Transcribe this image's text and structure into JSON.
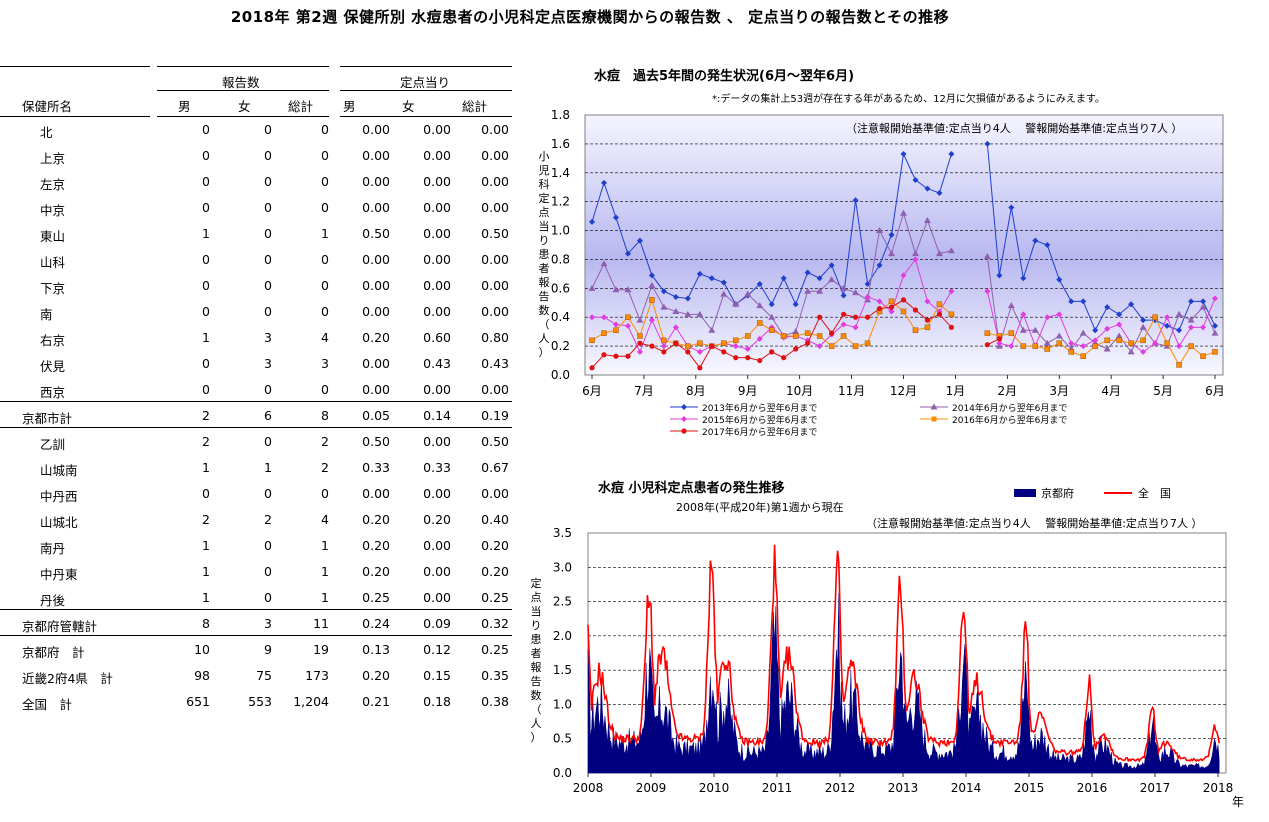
{
  "page_title": "2018年 第2週 保健所別 水痘患者の小児科定点医療機関からの報告数 、 定点当りの報告数とその推移",
  "table": {
    "group_headers": [
      "報告数",
      "定点当り"
    ],
    "col_headers": [
      "保健所名",
      "男",
      "女",
      "総計",
      "男",
      "女",
      "総計"
    ],
    "rows": [
      {
        "name": "北",
        "m": "0",
        "f": "0",
        "t": "0",
        "pm": "0.00",
        "pf": "0.00",
        "pt": "0.00",
        "indent": true
      },
      {
        "name": "上京",
        "m": "0",
        "f": "0",
        "t": "0",
        "pm": "0.00",
        "pf": "0.00",
        "pt": "0.00",
        "indent": true
      },
      {
        "name": "左京",
        "m": "0",
        "f": "0",
        "t": "0",
        "pm": "0.00",
        "pf": "0.00",
        "pt": "0.00",
        "indent": true
      },
      {
        "name": "中京",
        "m": "0",
        "f": "0",
        "t": "0",
        "pm": "0.00",
        "pf": "0.00",
        "pt": "0.00",
        "indent": true
      },
      {
        "name": "東山",
        "m": "1",
        "f": "0",
        "t": "1",
        "pm": "0.50",
        "pf": "0.00",
        "pt": "0.50",
        "indent": true
      },
      {
        "name": "山科",
        "m": "0",
        "f": "0",
        "t": "0",
        "pm": "0.00",
        "pf": "0.00",
        "pt": "0.00",
        "indent": true
      },
      {
        "name": "下京",
        "m": "0",
        "f": "0",
        "t": "0",
        "pm": "0.00",
        "pf": "0.00",
        "pt": "0.00",
        "indent": true
      },
      {
        "name": "南",
        "m": "0",
        "f": "0",
        "t": "0",
        "pm": "0.00",
        "pf": "0.00",
        "pt": "0.00",
        "indent": true
      },
      {
        "name": "右京",
        "m": "1",
        "f": "3",
        "t": "4",
        "pm": "0.20",
        "pf": "0.60",
        "pt": "0.80",
        "indent": true
      },
      {
        "name": "伏見",
        "m": "0",
        "f": "3",
        "t": "3",
        "pm": "0.00",
        "pf": "0.43",
        "pt": "0.43",
        "indent": true
      },
      {
        "name": "西京",
        "m": "0",
        "f": "0",
        "t": "0",
        "pm": "0.00",
        "pf": "0.00",
        "pt": "0.00",
        "indent": true
      },
      {
        "name": "京都市計",
        "m": "2",
        "f": "6",
        "t": "8",
        "pm": "0.05",
        "pf": "0.14",
        "pt": "0.19",
        "indent": false
      },
      {
        "name": "乙訓",
        "m": "2",
        "f": "0",
        "t": "2",
        "pm": "0.50",
        "pf": "0.00",
        "pt": "0.50",
        "indent": true
      },
      {
        "name": "山城南",
        "m": "1",
        "f": "1",
        "t": "2",
        "pm": "0.33",
        "pf": "0.33",
        "pt": "0.67",
        "indent": true
      },
      {
        "name": "中丹西",
        "m": "0",
        "f": "0",
        "t": "0",
        "pm": "0.00",
        "pf": "0.00",
        "pt": "0.00",
        "indent": true
      },
      {
        "name": "山城北",
        "m": "2",
        "f": "2",
        "t": "4",
        "pm": "0.20",
        "pf": "0.20",
        "pt": "0.40",
        "indent": true
      },
      {
        "name": "南丹",
        "m": "1",
        "f": "0",
        "t": "1",
        "pm": "0.20",
        "pf": "0.00",
        "pt": "0.20",
        "indent": true
      },
      {
        "name": "中丹東",
        "m": "1",
        "f": "0",
        "t": "1",
        "pm": "0.20",
        "pf": "0.00",
        "pt": "0.20",
        "indent": true
      },
      {
        "name": "丹後",
        "m": "1",
        "f": "0",
        "t": "1",
        "pm": "0.25",
        "pf": "0.00",
        "pt": "0.25",
        "indent": true
      },
      {
        "name": "京都府管轄計",
        "m": "8",
        "f": "3",
        "t": "11",
        "pm": "0.24",
        "pf": "0.09",
        "pt": "0.32",
        "indent": false
      },
      {
        "name": "京都府　計",
        "m": "10",
        "f": "9",
        "t": "19",
        "pm": "0.13",
        "pf": "0.12",
        "pt": "0.25",
        "indent": false
      },
      {
        "name": "近畿2府4県　計",
        "m": "98",
        "f": "75",
        "t": "173",
        "pm": "0.20",
        "pf": "0.15",
        "pt": "0.35",
        "indent": false
      },
      {
        "name": "全国　計",
        "m": "651",
        "f": "553",
        "t": "1,204",
        "pm": "0.21",
        "pf": "0.18",
        "pt": "0.38",
        "indent": false
      }
    ]
  },
  "chart_data": [
    {
      "type": "line",
      "title": "水痘　過去5年間の発生状況(6月～翌年6月)",
      "note": "*:データの集計上53週が存在する年があるため、12月に欠損値があるようにみえます。",
      "threshold_note": "（注意報開始基準値:定点当り4人　 警報開始基準値:定点当り7人 ）",
      "ylabel": "小児科定点当り患者報告数（人）",
      "ylim": [
        0,
        1.8
      ],
      "yticks": [
        "0.0",
        "0.2",
        "0.4",
        "0.6",
        "0.8",
        "1.0",
        "1.2",
        "1.4",
        "1.6",
        "1.8"
      ],
      "xticks": [
        "6月",
        "7月",
        "8月",
        "9月",
        "10月",
        "11月",
        "12月",
        "1月",
        "2月",
        "3月",
        "4月",
        "5月",
        "6月"
      ],
      "grid": true,
      "legend_position": "bottom",
      "x_weeks": 53,
      "series": [
        {
          "name": "2013年6月から翌年6月まで",
          "color": "#1f3fcf",
          "marker": "diamond",
          "values": [
            1.06,
            1.33,
            1.09,
            0.84,
            0.93,
            0.69,
            0.58,
            0.54,
            0.53,
            0.7,
            0.67,
            0.64,
            0.49,
            0.55,
            0.63,
            0.49,
            0.67,
            0.49,
            0.71,
            0.67,
            0.76,
            0.55,
            1.21,
            0.63,
            0.76,
            0.97,
            1.53,
            1.35,
            1.29,
            1.26,
            1.53,
            null,
            null,
            1.6,
            0.69,
            1.16,
            0.67,
            0.93,
            0.9,
            0.66,
            0.51,
            0.51,
            0.31,
            0.47,
            0.42,
            0.49,
            0.38,
            0.38,
            0.34,
            0.31,
            0.51,
            0.51,
            0.34
          ]
        },
        {
          "name": "2014年6月から翌年6月まで",
          "color": "#9060b0",
          "marker": "triangle",
          "values": [
            0.6,
            0.77,
            0.59,
            0.59,
            0.38,
            0.62,
            0.47,
            0.44,
            0.42,
            0.42,
            0.31,
            0.56,
            0.49,
            0.56,
            0.48,
            0.4,
            0.27,
            0.3,
            0.58,
            0.58,
            0.66,
            0.6,
            0.57,
            0.52,
            1.0,
            0.84,
            1.12,
            0.84,
            1.07,
            0.84,
            0.86,
            null,
            null,
            0.82,
            0.2,
            0.48,
            0.31,
            0.31,
            0.22,
            0.27,
            0.18,
            0.29,
            0.22,
            0.18,
            0.27,
            0.16,
            0.33,
            0.22,
            0.2,
            0.42,
            0.38,
            0.47,
            0.29
          ]
        },
        {
          "name": "2015年6月から翌年6月まで",
          "color": "#e03ce0",
          "marker": "diamond",
          "values": [
            0.4,
            0.4,
            0.35,
            0.34,
            0.16,
            0.38,
            0.2,
            0.33,
            0.2,
            0.16,
            0.2,
            0.22,
            0.2,
            0.18,
            0.25,
            0.33,
            0.26,
            0.27,
            0.24,
            0.2,
            0.28,
            0.35,
            0.33,
            0.54,
            0.51,
            0.44,
            0.69,
            0.8,
            0.51,
            0.44,
            0.58,
            null,
            null,
            0.58,
            0.22,
            0.2,
            0.42,
            0.2,
            0.4,
            0.42,
            0.22,
            0.2,
            0.24,
            0.32,
            0.35,
            0.22,
            0.16,
            0.22,
            0.4,
            0.2,
            0.33,
            0.33,
            0.53
          ]
        },
        {
          "name": "2016年6月から翌年6月まで",
          "color": "#ff8c00",
          "marker": "square",
          "values": [
            0.24,
            0.29,
            0.31,
            0.4,
            0.27,
            0.52,
            0.24,
            0.22,
            0.2,
            0.22,
            0.2,
            0.22,
            0.24,
            0.27,
            0.36,
            0.31,
            0.27,
            0.27,
            0.29,
            0.27,
            0.2,
            0.27,
            0.2,
            0.22,
            0.44,
            0.51,
            0.44,
            0.31,
            0.33,
            0.49,
            0.42,
            null,
            null,
            0.29,
            0.27,
            0.29,
            0.2,
            0.2,
            0.18,
            0.22,
            0.16,
            0.13,
            0.2,
            0.24,
            0.24,
            0.22,
            0.24,
            0.4,
            0.22,
            0.07,
            0.2,
            0.13,
            0.16
          ]
        },
        {
          "name": "2017年6月から翌年6月まで",
          "color": "#e01010",
          "marker": "circle",
          "values": [
            0.05,
            0.14,
            0.13,
            0.13,
            0.22,
            0.2,
            0.16,
            0.22,
            0.16,
            0.05,
            0.2,
            0.16,
            0.12,
            0.12,
            0.1,
            0.16,
            0.12,
            0.18,
            0.22,
            0.4,
            0.29,
            0.42,
            0.4,
            0.4,
            0.46,
            0.47,
            0.52,
            0.45,
            0.38,
            0.42,
            0.33,
            null,
            null,
            0.21,
            0.25
          ]
        }
      ]
    },
    {
      "type": "area",
      "title": "水痘  小児科定点患者の発生推移",
      "subtitle": "2008年(平成20年)第1週から現在",
      "threshold_note": "（注意報開始基準値:定点当り4人　 警報開始基準値:定点当り7人 ）",
      "ylabel": "定点当り患者報告数（人）",
      "xlabel": "年",
      "ylim": [
        0,
        3.5
      ],
      "yticks": [
        "0.0",
        "0.5",
        "1.0",
        "1.5",
        "2.0",
        "2.5",
        "3.0",
        "3.5"
      ],
      "xticks": [
        "2008",
        "2009",
        "2010",
        "2011",
        "2012",
        "2013",
        "2014",
        "2015",
        "2016",
        "2017",
        "2018"
      ],
      "grid": true,
      "legend_position": "top-right",
      "series": [
        {
          "name": "京都府",
          "color": "#000080",
          "kind": "area",
          "annual_peaks": [
            1.6,
            1.55,
            1.85,
            1.95,
            1.75,
            1.8,
            1.45,
            0.9,
            0.75,
            0.55,
            0.45
          ],
          "annual_troughs": [
            0.45,
            0.35,
            0.3,
            0.3,
            0.35,
            0.3,
            0.3,
            0.2,
            0.1,
            0.1,
            0.1
          ]
        },
        {
          "name": "全　国",
          "color": "#ff0000",
          "kind": "line",
          "annual_peaks": [
            2.45,
            3.0,
            3.0,
            2.95,
            2.7,
            2.4,
            2.2,
            1.35,
            0.95,
            0.7,
            0.7
          ],
          "annual_troughs": [
            0.5,
            0.5,
            0.45,
            0.45,
            0.45,
            0.45,
            0.45,
            0.3,
            0.2,
            0.2,
            0.2
          ]
        }
      ]
    }
  ]
}
